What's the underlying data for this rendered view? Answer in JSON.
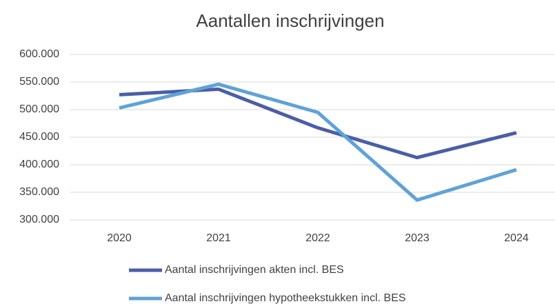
{
  "chart_data": {
    "type": "line",
    "title": "Aantallen inschrijvingen",
    "categories": [
      "2020",
      "2021",
      "2022",
      "2023",
      "2024"
    ],
    "series": [
      {
        "name": "Aantal inschrijvingen akten incl. BES",
        "color": "#4a5ea8",
        "values": [
          527000,
          537000,
          467000,
          413000,
          458000
        ]
      },
      {
        "name": "Aantal inschrijvingen hypotheekstukken incl. BES",
        "color": "#5fa2d8",
        "values": [
          503000,
          546000,
          495000,
          336000,
          391000
        ]
      }
    ],
    "ylim": [
      300000,
      600000
    ],
    "yticks": [
      {
        "value": 300000,
        "label": "300.000"
      },
      {
        "value": 350000,
        "label": "350.000"
      },
      {
        "value": 400000,
        "label": "400.000"
      },
      {
        "value": 450000,
        "label": "450.000"
      },
      {
        "value": 500000,
        "label": "500.000"
      },
      {
        "value": 550000,
        "label": "550.000"
      },
      {
        "value": 600000,
        "label": "600.000"
      }
    ],
    "grid": true,
    "legend": "bottom"
  }
}
